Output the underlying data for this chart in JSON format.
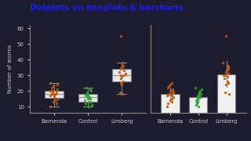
{
  "title": "Dotplots on boxplots & barcharts",
  "title_color": "#1a1aff",
  "ylabel": "Number of worms",
  "ylim": [
    6,
    62
  ],
  "yticks": [
    10,
    20,
    30,
    40,
    50,
    60
  ],
  "categories": [
    "Bamenda",
    "Control",
    "Limberg"
  ],
  "bamenda_data": [
    10,
    12,
    13,
    14,
    15,
    16,
    17,
    17,
    18,
    18,
    18,
    19,
    19,
    20,
    20,
    21,
    22,
    23,
    24,
    25
  ],
  "control_data": [
    10,
    11,
    12,
    13,
    13,
    14,
    15,
    15,
    16,
    16,
    17,
    17,
    18,
    18,
    19,
    20,
    21,
    22
  ],
  "limberg_data": [
    18,
    19,
    24,
    25,
    26,
    28,
    29,
    30,
    30,
    31,
    32,
    33,
    34,
    35,
    36,
    38,
    55
  ],
  "bamenda_color": "#cc5500",
  "control_color": "#22aa22",
  "limberg_color": "#cc5500",
  "box_facecolor": "#e8e8e8",
  "box_edgecolor": "#777777",
  "bar_facecolor": "#f0f0f0",
  "bar_edgecolor": "#777777",
  "bg_color": "#1a1a2e",
  "fig_bg": "#2a2a3e",
  "axes_bg": "#2a2a3e",
  "tick_color": "#cccccc",
  "spine_color": "#888888",
  "label_color": "#cccccc"
}
